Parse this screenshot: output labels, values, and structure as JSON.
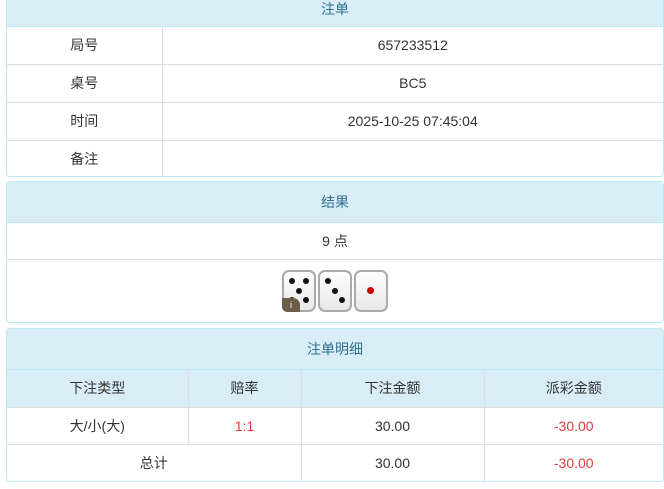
{
  "order": {
    "title": "注单",
    "rows": [
      {
        "label": "局号",
        "value": "657233512"
      },
      {
        "label": "桌号",
        "value": "BC5"
      },
      {
        "label": "时间",
        "value": "2025-10-25 07:45:04"
      },
      {
        "label": "备注",
        "value": ""
      }
    ]
  },
  "result": {
    "title": "结果",
    "points": "9 点",
    "dice": [
      5,
      3,
      1
    ],
    "info_icon": "i"
  },
  "detail": {
    "title": "注单明细",
    "headers": [
      "下注类型",
      "赔率",
      "下注金额",
      "派彩金额"
    ],
    "rows": [
      {
        "type": "大/小(大)",
        "odds": "1:1",
        "bet": "30.00",
        "payout": "-30.00"
      }
    ],
    "total": {
      "label": "总计",
      "bet": "30.00",
      "payout": "-30.00"
    }
  },
  "colors": {
    "header_bg": "#d9edf7",
    "header_text": "#31708f",
    "negative": "#e4393c"
  }
}
